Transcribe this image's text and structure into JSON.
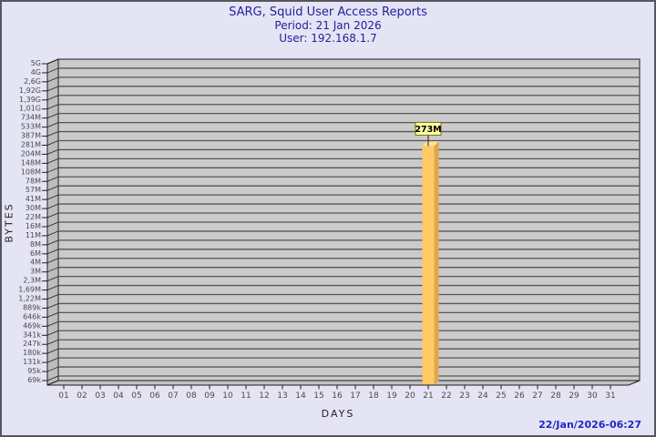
{
  "window": {
    "bg_color": "#E4E4F4",
    "border_color": "#56565E"
  },
  "footer": {
    "timestamp": "22/Jan/2026-06:27",
    "timestamp_color": "#2424C4"
  },
  "chart_data": {
    "type": "bar",
    "title": "SARG, Squid User Access Reports",
    "period": "Period: 21 Jan 2026",
    "user": "User: 192.168.1.7",
    "xlabel": "DAYS",
    "ylabel": "BYTES",
    "y_scale": "log",
    "y_axis_min_bytes": 69000,
    "y_axis_max_bytes": 5000000000,
    "y_ticks": [
      "5G",
      "4G",
      "2,6G",
      "1,92G",
      "1,39G",
      "1,01G",
      "734M",
      "533M",
      "387M",
      "281M",
      "204M",
      "148M",
      "108M",
      "78M",
      "57M",
      "41M",
      "30M",
      "22M",
      "16M",
      "11M",
      "8M",
      "6M",
      "4M",
      "3M",
      "2,3M",
      "1,69M",
      "1,22M",
      "889k",
      "646k",
      "469k",
      "341k",
      "247k",
      "180k",
      "131k",
      "95k",
      "69k"
    ],
    "x_categories": [
      "01",
      "02",
      "03",
      "04",
      "05",
      "06",
      "07",
      "08",
      "09",
      "10",
      "11",
      "12",
      "13",
      "14",
      "15",
      "16",
      "17",
      "18",
      "19",
      "20",
      "21",
      "22",
      "23",
      "24",
      "25",
      "26",
      "27",
      "28",
      "29",
      "30",
      "31"
    ],
    "bars": [
      {
        "day": "21",
        "value_bytes": 273000000,
        "label": "273M"
      }
    ],
    "grid_on": true,
    "legend": "none",
    "colors": {
      "title_text": "#22229B",
      "panel": "#CBCBCB",
      "wall": "#BDBDBD",
      "floor": "#C3C3C3",
      "grid": "#565656",
      "edge": "#1e1e1e",
      "tick_text": "#4a4a4a",
      "bar_front": "#FFC966",
      "bar_side": "#E2A64A",
      "bar_top": "#FFE096",
      "annotation_bg": "#FFFFA5",
      "annotation_border": "#73730E",
      "annotation_text": "#000000"
    }
  }
}
